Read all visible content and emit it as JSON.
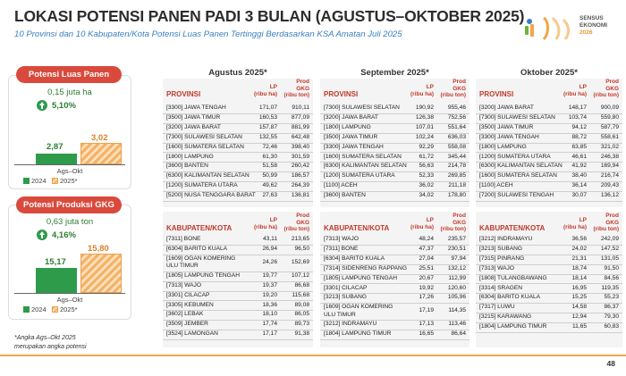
{
  "header": {
    "title": "LOKASI POTENSI PANEN PADI 3 BULAN (AGUSTUS–OKTOBER 2025)",
    "subtitle": "10 Provinsi dan 10 Kabupaten/Kota Potensi Luas Panen Tertinggi Berdasarkan KSA Amatan Juli 2025",
    "logo_text_1": "SENSUS",
    "logo_text_2": "EKONOMI",
    "logo_text_3": "2026"
  },
  "colors": {
    "accent": "#d94a3d",
    "green": "#2e9b4a",
    "orange": "#f4b266",
    "subtitle": "#3a7fbf"
  },
  "luas_panen": {
    "label": "Potensi Luas Panen",
    "change": "0,15 juta ha",
    "pct": "5,10%",
    "v2024": "2,87",
    "v2025": "3,02",
    "axis": "Ags–Okt",
    "legend_2024": "2024",
    "legend_2025": "2025*"
  },
  "produksi": {
    "label": "Potensi Produksi GKG",
    "change": "0,63 juta ton",
    "pct": "4,16%",
    "v2024": "15,17",
    "v2025": "15,80",
    "axis": "Ags–Okt",
    "legend_2024": "2024",
    "legend_2025": "2025*"
  },
  "footnote_1": "*Angka Ags–Okt 2025",
  "footnote_2": "merupakan angka potensi",
  "page_number": "48",
  "columns": {
    "provinsi": "PROVINSI",
    "kabupaten": "KABUPATEN/KOTA",
    "lp_1": "LP",
    "lp_2": "(ribu ha)",
    "prod_1": "Prod",
    "prod_2": "GKG",
    "prod_3": "(ribu ton)"
  },
  "months": [
    {
      "title": "Agustus 2025*",
      "provinsi": [
        [
          "[3300] JAWA TENGAH",
          "171,07",
          "910,11"
        ],
        [
          "[3500] JAWA TIMUR",
          "160,53",
          "877,09"
        ],
        [
          "[3200] JAWA BARAT",
          "157,87",
          "881,99"
        ],
        [
          "[7300] SULAWESI SELATAN",
          "132,55",
          "642,48"
        ],
        [
          "[1600] SUMATERA SELATAN",
          "72,46",
          "398,40"
        ],
        [
          "[1800] LAMPUNG",
          "61,30",
          "301,59"
        ],
        [
          "[3600] BANTEN",
          "51,58",
          "260,42"
        ],
        [
          "[6300] KALIMANTAN SELATAN",
          "50,99",
          "186,57"
        ],
        [
          "[1200] SUMATERA UTARA",
          "49,62",
          "264,39"
        ],
        [
          "[5200] NUSA TENGGARA BARAT",
          "27,63",
          "136,81"
        ]
      ],
      "kabupaten": [
        [
          "[7311] BONE",
          "43,11",
          "213,65"
        ],
        [
          "[6304] BARITO KUALA",
          "26,94",
          "96,50"
        ],
        [
          "[1609] OGAN KOMERING ULU TIMUR",
          "24,26",
          "152,69"
        ],
        [
          "[1805] LAMPUNG TENGAH",
          "19,77",
          "107,12"
        ],
        [
          "[7313] WAJO",
          "19,37",
          "86,68"
        ],
        [
          "[3301] CILACAP",
          "19,20",
          "115,68"
        ],
        [
          "[3305] KEBUMEN",
          "18,36",
          "89,08"
        ],
        [
          "[3602] LEBAK",
          "18,10",
          "86,05"
        ],
        [
          "[3509] JEMBER",
          "17,74",
          "89,73"
        ],
        [
          "[3524] LAMONGAN",
          "17,17",
          "91,38"
        ]
      ]
    },
    {
      "title": "September 2025*",
      "provinsi": [
        [
          "[7300] SULAWESI SELATAN",
          "190,92",
          "955,46"
        ],
        [
          "[3200] JAWA BARAT",
          "126,38",
          "752,56"
        ],
        [
          "[1800] LAMPUNG",
          "107,01",
          "551,64"
        ],
        [
          "[3500] JAWA TIMUR",
          "102,24",
          "636,03"
        ],
        [
          "[3300] JAWA TENGAH",
          "92,29",
          "558,08"
        ],
        [
          "[1600] SUMATERA SELATAN",
          "61,72",
          "345,44"
        ],
        [
          "[6300] KALIMANTAN SELATAN",
          "56,63",
          "214,78"
        ],
        [
          "[1200] SUMATERA UTARA",
          "52,33",
          "269,85"
        ],
        [
          "[1100] ACEH",
          "36,02",
          "211,18"
        ],
        [
          "[3600] BANTEN",
          "34,02",
          "178,80"
        ]
      ],
      "kabupaten": [
        [
          "[7313] WAJO",
          "48,24",
          "235,57"
        ],
        [
          "[7311] BONE",
          "47,37",
          "230,51"
        ],
        [
          "[6304] BARITO KUALA",
          "27,04",
          "97,94"
        ],
        [
          "[7314] SIDENRENG RAPPANG",
          "25,51",
          "132,12"
        ],
        [
          "[1805] LAMPUNG TENGAH",
          "20,67",
          "112,99"
        ],
        [
          "[3301] CILACAP",
          "19,92",
          "120,60"
        ],
        [
          "[3213] SUBANG",
          "17,26",
          "105,96"
        ],
        [
          "[1609] OGAN KOMERING ULU TIMUR",
          "17,19",
          "114,35"
        ],
        [
          "[3212] INDRAMAYU",
          "17,13",
          "113,46"
        ],
        [
          "[1804] LAMPUNG TIMUR",
          "16,65",
          "86,64"
        ]
      ]
    },
    {
      "title": "Oktober 2025*",
      "provinsi": [
        [
          "[3200] JAWA BARAT",
          "148,17",
          "900,09"
        ],
        [
          "[7300] SULAWESI SELATAN",
          "103,74",
          "559,80"
        ],
        [
          "[3500] JAWA TIMUR",
          "94,12",
          "587,79"
        ],
        [
          "[3300] JAWA TENGAH",
          "88,72",
          "558,61"
        ],
        [
          "[1800] LAMPUNG",
          "63,85",
          "321,02"
        ],
        [
          "[1200] SUMATERA UTARA",
          "46,61",
          "246,38"
        ],
        [
          "[6300] KALIMANTAN SELATAN",
          "41,92",
          "169,94"
        ],
        [
          "[1600] SUMATERA SELATAN",
          "38,40",
          "216,74"
        ],
        [
          "[1100] ACEH",
          "36,14",
          "209,43"
        ],
        [
          "[7200] SULAWESI TENGAH",
          "30,07",
          "136,12"
        ]
      ],
      "kabupaten": [
        [
          "[3212] INDRAMAYU",
          "36,56",
          "242,09"
        ],
        [
          "[3213] SUBANG",
          "24,02",
          "147,52"
        ],
        [
          "[7315] PINRANG",
          "21,31",
          "131,05"
        ],
        [
          "[7313] WAJO",
          "18,74",
          "91,50"
        ],
        [
          "[1808] TULANGBAWANG",
          "18,14",
          "84,56"
        ],
        [
          "[3314] SRAGEN",
          "16,95",
          "119,35"
        ],
        [
          "[6304] BARITO KUALA",
          "15,25",
          "55,23"
        ],
        [
          "[7317] LUWU",
          "14,58",
          "86,37"
        ],
        [
          "[3215] KARAWANG",
          "12,94",
          "79,30"
        ],
        [
          "[1804] LAMPUNG TIMUR",
          "11,65",
          "60,83"
        ]
      ]
    }
  ]
}
